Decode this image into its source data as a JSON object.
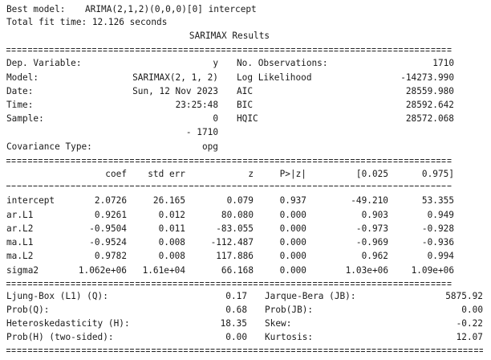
{
  "header": {
    "best_model_label": "Best model:",
    "best_model_value": "ARIMA(2,1,2)(0,0,0)[0] intercept",
    "fit_time": "Total fit time: 12.126 seconds",
    "title": "SARIMAX Results"
  },
  "info": {
    "left": [
      {
        "label": "Dep. Variable:",
        "value": "y"
      },
      {
        "label": "Model:",
        "value": "SARIMAX(2, 1, 2)"
      },
      {
        "label": "Date:",
        "value": "Sun, 12 Nov 2023"
      },
      {
        "label": "Time:",
        "value": "23:25:48"
      },
      {
        "label": "Sample:",
        "value": "0"
      },
      {
        "label": "",
        "value": "- 1710"
      },
      {
        "label": "Covariance Type:",
        "value": "opg"
      }
    ],
    "right": [
      {
        "label": "No. Observations:",
        "value": "1710"
      },
      {
        "label": "Log Likelihood",
        "value": "-14273.990"
      },
      {
        "label": "AIC",
        "value": "28559.980"
      },
      {
        "label": "BIC",
        "value": "28592.642"
      },
      {
        "label": "HQIC",
        "value": "28572.068"
      }
    ]
  },
  "coef_table": {
    "headers": [
      "coef",
      "std err",
      "z",
      "P>|z|",
      "[0.025",
      "0.975]"
    ],
    "rows": [
      [
        "intercept",
        "2.0726",
        "26.165",
        "0.079",
        "0.937",
        "-49.210",
        "53.355"
      ],
      [
        "ar.L1",
        "0.9261",
        "0.012",
        "80.080",
        "0.000",
        "0.903",
        "0.949"
      ],
      [
        "ar.L2",
        "-0.9504",
        "0.011",
        "-83.055",
        "0.000",
        "-0.973",
        "-0.928"
      ],
      [
        "ma.L1",
        "-0.9524",
        "0.008",
        "-112.487",
        "0.000",
        "-0.969",
        "-0.936"
      ],
      [
        "ma.L2",
        "0.9782",
        "0.008",
        "117.886",
        "0.000",
        "0.962",
        "0.994"
      ],
      [
        "sigma2",
        "1.062e+06",
        "1.61e+04",
        "66.168",
        "0.000",
        "1.03e+06",
        "1.09e+06"
      ]
    ]
  },
  "diagnostics": {
    "left": [
      {
        "label": "Ljung-Box (L1) (Q):",
        "value": "0.17"
      },
      {
        "label": "Prob(Q):",
        "value": "0.68"
      },
      {
        "label": "Heteroskedasticity (H):",
        "value": "18.35"
      },
      {
        "label": "Prob(H) (two-sided):",
        "value": "0.00"
      }
    ],
    "right": [
      {
        "label": "Jarque-Bera (JB):",
        "value": "5875.92"
      },
      {
        "label": "Prob(JB):",
        "value": "0.00"
      },
      {
        "label": "Skew:",
        "value": "-0.22"
      },
      {
        "label": "Kurtosis:",
        "value": "12.07"
      }
    ]
  }
}
